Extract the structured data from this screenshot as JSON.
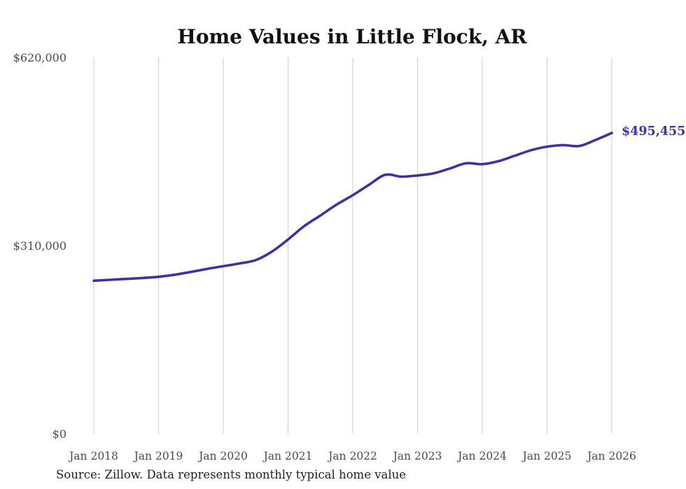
{
  "page": {
    "background": "#ffffff"
  },
  "chart_data": {
    "type": "line",
    "title": "Home Values in Little Flock, AR",
    "source_note": "Source: Zillow. Data represents monthly typical home value",
    "end_label": "$495,455",
    "end_value": 495455,
    "line_color": "#3B339E",
    "grid_color": "#cccccc",
    "axis_label_color": "#4a4a4a",
    "title_color": "#111111",
    "source_color": "#222222",
    "xlabel": "",
    "ylabel": "",
    "ylim": [
      0,
      620000
    ],
    "xlim_years": [
      2018,
      2026
    ],
    "grid": "vertical-only",
    "legend": "none",
    "x_ticks": [
      {
        "label": "Jan 2018",
        "year": 2018
      },
      {
        "label": "Jan 2019",
        "year": 2019
      },
      {
        "label": "Jan 2020",
        "year": 2020
      },
      {
        "label": "Jan 2021",
        "year": 2021
      },
      {
        "label": "Jan 2022",
        "year": 2022
      },
      {
        "label": "Jan 2023",
        "year": 2023
      },
      {
        "label": "Jan 2024",
        "year": 2024
      },
      {
        "label": "Jan 2025",
        "year": 2025
      },
      {
        "label": "Jan 2026",
        "year": 2026
      }
    ],
    "y_ticks": [
      {
        "label": "$0",
        "value": 0
      },
      {
        "label": "$310,000",
        "value": 310000
      },
      {
        "label": "$620,000",
        "value": 620000
      }
    ],
    "series": [
      {
        "name": "Typical home value",
        "points": [
          [
            2018.0,
            252000
          ],
          [
            2018.25,
            253500
          ],
          [
            2018.5,
            255000
          ],
          [
            2018.75,
            256500
          ],
          [
            2019.0,
            258500
          ],
          [
            2019.25,
            262000
          ],
          [
            2019.5,
            266500
          ],
          [
            2019.75,
            271500
          ],
          [
            2020.0,
            276000
          ],
          [
            2020.25,
            280500
          ],
          [
            2020.5,
            286000
          ],
          [
            2020.75,
            300000
          ],
          [
            2021.0,
            320000
          ],
          [
            2021.25,
            342000
          ],
          [
            2021.5,
            359500
          ],
          [
            2021.75,
            377500
          ],
          [
            2022.0,
            393000
          ],
          [
            2022.25,
            410000
          ],
          [
            2022.5,
            426500
          ],
          [
            2022.75,
            423500
          ],
          [
            2023.0,
            425500
          ],
          [
            2023.25,
            429000
          ],
          [
            2023.5,
            437000
          ],
          [
            2023.75,
            445500
          ],
          [
            2024.0,
            444000
          ],
          [
            2024.25,
            449000
          ],
          [
            2024.5,
            458000
          ],
          [
            2024.75,
            467000
          ],
          [
            2025.0,
            473000
          ],
          [
            2025.25,
            475500
          ],
          [
            2025.5,
            474000
          ],
          [
            2025.75,
            484000
          ],
          [
            2026.0,
            495455
          ]
        ]
      }
    ]
  }
}
